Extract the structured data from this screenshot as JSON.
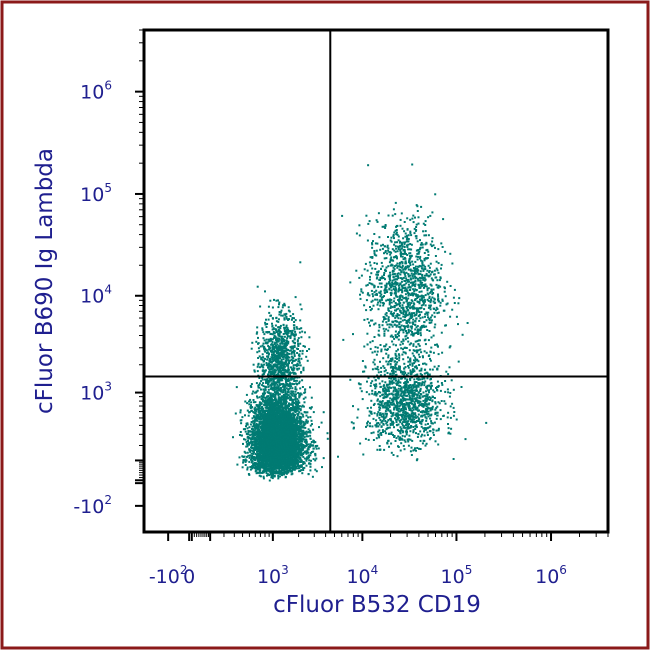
{
  "colors": {
    "border": "#8b1a1a",
    "text": "#1f1f8f",
    "events": "#007b73",
    "axes": "#000000",
    "background": "#ffffff"
  },
  "chart_data": {
    "type": "scatter",
    "xlabel": "cFluor B532 CD19",
    "ylabel": "cFluor B690 Ig Lambda",
    "x_scale": "biexponential",
    "y_scale": "biexponential",
    "xlim": [
      -300,
      4000000
    ],
    "ylim": [
      -300,
      4000000
    ],
    "x_ticks": [
      {
        "base": "-10",
        "exp": "2",
        "value": -100
      },
      {
        "base": "0",
        "exp": "",
        "value": 0
      },
      {
        "base": "10",
        "exp": "3",
        "value": 1000
      },
      {
        "base": "10",
        "exp": "4",
        "value": 10000
      },
      {
        "base": "10",
        "exp": "5",
        "value": 100000
      },
      {
        "base": "10",
        "exp": "6",
        "value": 1000000
      }
    ],
    "y_ticks": [
      {
        "base": "10",
        "exp": "6",
        "value": 1000000
      },
      {
        "base": "10",
        "exp": "5",
        "value": 100000
      },
      {
        "base": "10",
        "exp": "4",
        "value": 10000
      },
      {
        "base": "10",
        "exp": "3",
        "value": 1000
      },
      {
        "base": "-10",
        "exp": "2",
        "value": -100
      }
    ],
    "gates": {
      "x": 4500,
      "y": 1500
    },
    "populations": [
      {
        "x": 1100,
        "y": 250,
        "x_spread": 0.16,
        "y_spread": 0.32,
        "weight": 0.62
      },
      {
        "x": 1200,
        "y": 2500,
        "x_spread": 0.12,
        "y_spread": 0.22,
        "weight": 0.1
      },
      {
        "x": 28000,
        "y": 12000,
        "x_spread": 0.2,
        "y_spread": 0.34,
        "weight": 0.14
      },
      {
        "x": 28000,
        "y": 800,
        "x_spread": 0.2,
        "y_spread": 0.28,
        "weight": 0.14
      }
    ],
    "grid": false,
    "legend": "none"
  }
}
